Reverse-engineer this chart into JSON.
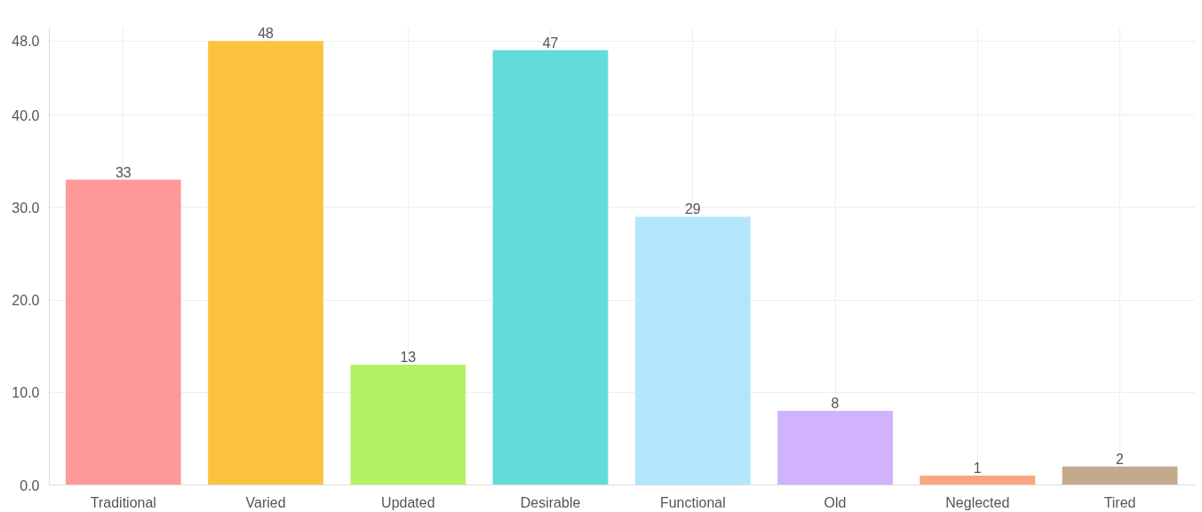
{
  "chart_data": {
    "type": "bar",
    "categories": [
      "Traditional",
      "Varied",
      "Updated",
      "Desirable",
      "Functional",
      "Old",
      "Neglected",
      "Tired"
    ],
    "values": [
      33,
      48,
      13,
      47,
      29,
      8,
      1,
      2
    ],
    "colors": [
      "#ff9999",
      "#fcc33f",
      "#b3f266",
      "#63dbd8",
      "#b3e6fd",
      "#d0b3fc",
      "#f9a67e",
      "#c4a98c"
    ],
    "ylim": [
      0,
      49.5
    ],
    "yticks": [
      {
        "value": 0,
        "label": "0.0"
      },
      {
        "value": 10,
        "label": "10.0"
      },
      {
        "value": 20,
        "label": "20.0"
      },
      {
        "value": 30,
        "label": "30.0"
      },
      {
        "value": 40,
        "label": "40.0"
      },
      {
        "value": 48,
        "label": "48.0"
      }
    ],
    "grid": true,
    "data_labels": true
  }
}
